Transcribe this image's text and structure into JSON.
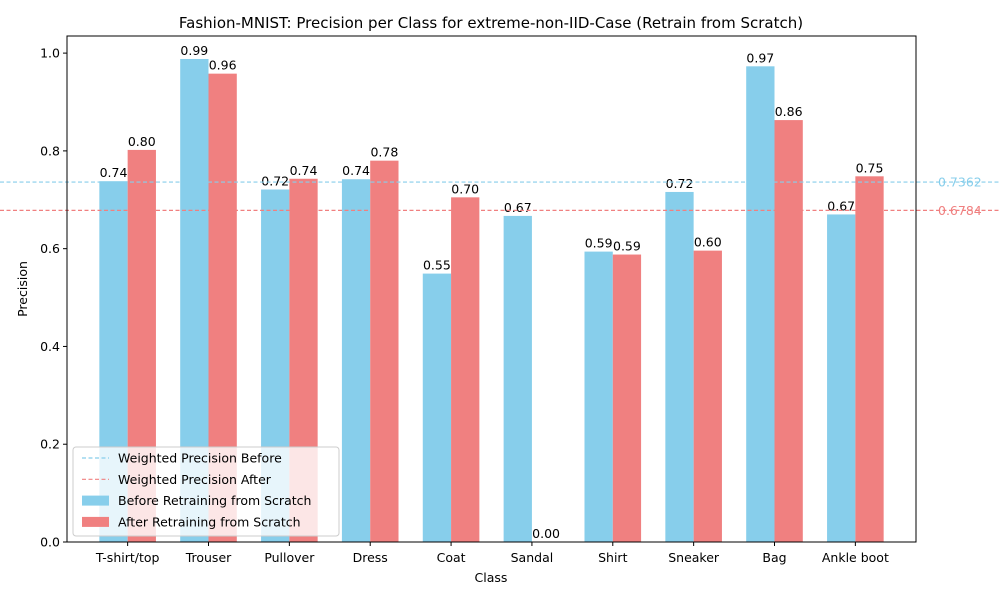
{
  "chart_data": {
    "type": "bar",
    "title": "Fashion-MNIST: Precision per Class for extreme-non-IID-Case (Retrain from Scratch)",
    "xlabel": "Class",
    "ylabel": "Precision",
    "ylim": [
      0,
      1.035
    ],
    "yticks": [
      "0.0",
      "0.2",
      "0.4",
      "0.6",
      "0.8",
      "1.0"
    ],
    "categories": [
      "T-shirt/top",
      "Trouser",
      "Pullover",
      "Dress",
      "Coat",
      "Sandal",
      "Shirt",
      "Sneaker",
      "Bag",
      "Ankle boot"
    ],
    "series": [
      {
        "name": "Before Retraining from Scratch",
        "color": "#87ceeb",
        "values": [
          0.738,
          0.988,
          0.721,
          0.742,
          0.549,
          0.667,
          0.594,
          0.716,
          0.973,
          0.67
        ],
        "labels": [
          "0.74",
          "0.99",
          "0.72",
          "0.74",
          "0.55",
          "0.67",
          "0.59",
          "0.72",
          "0.97",
          "0.67"
        ]
      },
      {
        "name": "After Retraining from Scratch",
        "color": "#f08080",
        "values": [
          0.802,
          0.958,
          0.743,
          0.78,
          0.705,
          0.0,
          0.588,
          0.596,
          0.863,
          0.748
        ],
        "labels": [
          "0.80",
          "0.96",
          "0.74",
          "0.78",
          "0.70",
          "0.00",
          "0.59",
          "0.60",
          "0.86",
          "0.75"
        ]
      }
    ],
    "reference_lines": [
      {
        "name": "Weighted Precision Before",
        "value": 0.7362,
        "label": "0.7362",
        "color": "#87ceeb"
      },
      {
        "name": "Weighted Precision After",
        "value": 0.6784,
        "label": "0.6784",
        "color": "#f08080"
      }
    ],
    "legend": {
      "position": "lower-left",
      "entries": [
        {
          "label": "Weighted Precision Before",
          "kind": "line",
          "color": "#87ceeb"
        },
        {
          "label": "Weighted Precision After",
          "kind": "line",
          "color": "#f08080"
        },
        {
          "label": "Before Retraining from Scratch",
          "kind": "patch",
          "color": "#87ceeb"
        },
        {
          "label": "After Retraining from Scratch",
          "kind": "patch",
          "color": "#f08080"
        }
      ]
    },
    "grid": false
  }
}
